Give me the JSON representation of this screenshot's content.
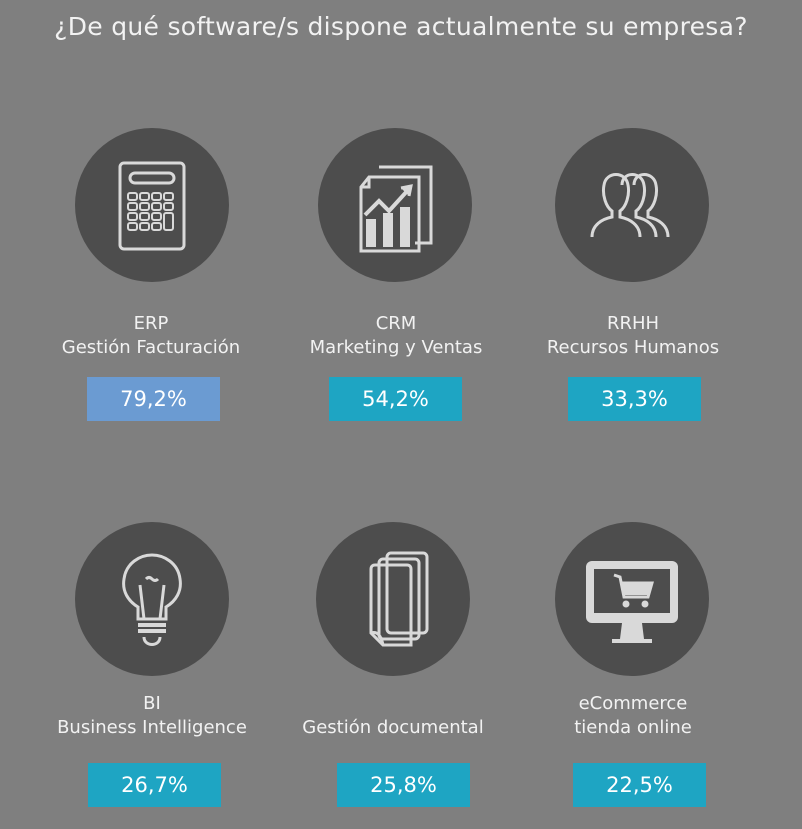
{
  "title": "¿De qué software/s dispone actualmente su empresa?",
  "colors": {
    "background": "#7f7f7f",
    "circle": "#4d4d4d",
    "icon": "#d9d9d9",
    "highlight": "#6b9bd2",
    "accent": "#1ea5c3"
  },
  "items": [
    {
      "line1": "ERP",
      "line2": "Gestión Facturación",
      "value_label": "79,2%",
      "icon": "calculator-icon"
    },
    {
      "line1": "CRM",
      "line2": "Marketing y Ventas",
      "value_label": "54,2%",
      "icon": "chart-document-icon"
    },
    {
      "line1": "RRHH",
      "line2": "Recursos Humanos",
      "value_label": "33,3%",
      "icon": "people-icon"
    },
    {
      "line1": "BI",
      "line2": "Business Intelligence",
      "value_label": "26,7%",
      "icon": "lightbulb-icon"
    },
    {
      "line1": "",
      "line2": "Gestión documental",
      "value_label": "25,8%",
      "icon": "documents-icon"
    },
    {
      "line1": "eCommerce",
      "line2": "tienda online",
      "value_label": "22,5%",
      "icon": "monitor-cart-icon"
    }
  ],
  "chart_data": {
    "type": "table",
    "title": "¿De qué software/s dispone actualmente su empresa?",
    "categories": [
      "ERP Gestión Facturación",
      "CRM Marketing y Ventas",
      "RRHH Recursos Humanos",
      "BI Business Intelligence",
      "Gestión documental",
      "eCommerce tienda online"
    ],
    "values": [
      79.2,
      54.2,
      33.3,
      26.7,
      25.8,
      22.5
    ],
    "unit": "%"
  }
}
